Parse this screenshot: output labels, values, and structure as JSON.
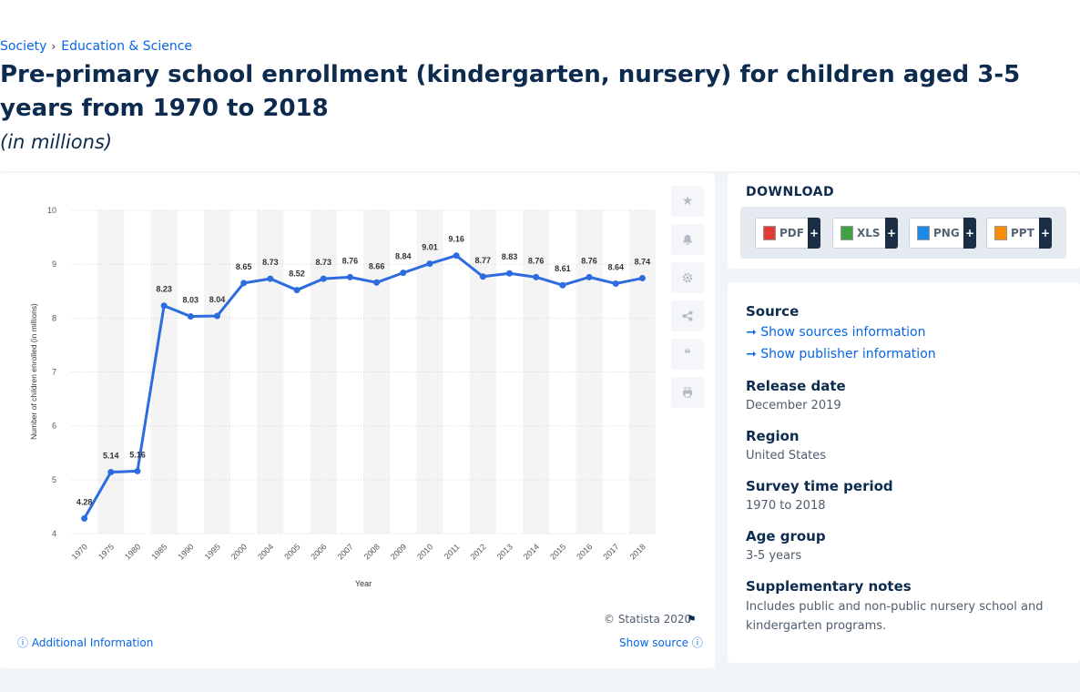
{
  "breadcrumb": {
    "items": [
      "Society",
      "Education & Science"
    ],
    "separator": "›"
  },
  "title": "Pre-primary school enrollment (kindergarten, nursery) for children aged 3-5 years from 1970 to 2018",
  "subtitle": "(in millions)",
  "chart_data": {
    "type": "line",
    "xlabel": "Year",
    "ylabel": "Number of children enrolled (in millions)",
    "ylim": [
      4,
      10
    ],
    "yticks": [
      4,
      5,
      6,
      7,
      8,
      9,
      10
    ],
    "grid": true,
    "categories": [
      "1970",
      "1975",
      "1980",
      "1985",
      "1990",
      "1995",
      "2000",
      "2004",
      "2005",
      "2006",
      "2007",
      "2008",
      "2009",
      "2010",
      "2011",
      "2012",
      "2013",
      "2014",
      "2015",
      "2016",
      "2017",
      "2018"
    ],
    "values": [
      4.28,
      5.14,
      5.16,
      8.23,
      8.03,
      8.04,
      8.65,
      8.73,
      8.52,
      8.73,
      8.76,
      8.66,
      8.84,
      9.01,
      9.16,
      8.77,
      8.83,
      8.76,
      8.61,
      8.76,
      8.64,
      8.74
    ],
    "color": "#2d6cdf"
  },
  "footer": {
    "copyright": "© Statista 2020",
    "additional_info": "Additional Information",
    "show_source": "Show source"
  },
  "download": {
    "title": "DOWNLOAD",
    "buttons": [
      {
        "label": "PDF",
        "color": "#e53935"
      },
      {
        "label": "XLS",
        "color": "#43a047"
      },
      {
        "label": "PNG",
        "color": "#1e88e5"
      },
      {
        "label": "PPT",
        "color": "#fb8c00"
      }
    ],
    "plus": "+"
  },
  "source": {
    "heading": "Source",
    "show_sources": "Show sources information",
    "show_publisher": "Show publisher information",
    "release_date_label": "Release date",
    "release_date": "December 2019",
    "region_label": "Region",
    "region": "United States",
    "survey_label": "Survey time period",
    "survey": "1970 to 2018",
    "age_label": "Age group",
    "age": "3-5 years",
    "notes_label": "Supplementary notes",
    "notes": "Includes public and non-public nursery school and kindergarten programs."
  }
}
